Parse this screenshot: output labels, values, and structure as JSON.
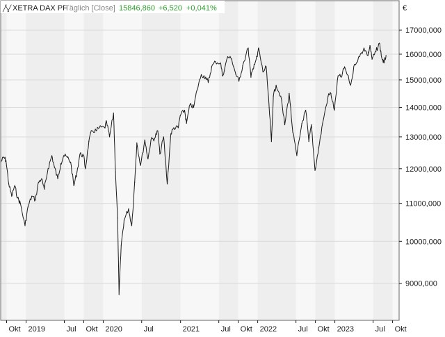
{
  "header": {
    "logo_glyph": "╱╲╱",
    "instrument": "XETRA DAX PF",
    "period": "Täglich [Close]",
    "last": "15846,860",
    "change": "+6,520",
    "change_pct": "+0,041%",
    "currency": "€"
  },
  "colors": {
    "background": "#ffffff",
    "band_light": "#f7f7f7",
    "band_dark": "#eeeeee",
    "grid": "#d9d9d9",
    "line": "#1a1a1a",
    "text": "#1a1a1a",
    "muted": "#888888",
    "positive": "#2e9e2e"
  },
  "chart_data": {
    "type": "line",
    "title": "XETRA DAX PF",
    "xlabel": "",
    "ylabel": "",
    "y_scale": "log",
    "x_range": [
      "2018-09-03",
      "2023-11-01"
    ],
    "ylim": [
      8200,
      18300
    ],
    "y_ticks": [
      {
        "value": 9000,
        "label": "9000,000"
      },
      {
        "value": 10000,
        "label": "10000,000"
      },
      {
        "value": 11000,
        "label": "11000,000"
      },
      {
        "value": 12000,
        "label": "12000,000"
      },
      {
        "value": 13000,
        "label": "13000,000"
      },
      {
        "value": 14000,
        "label": "14000,000"
      },
      {
        "value": 15000,
        "label": "15000,000"
      },
      {
        "value": 16000,
        "label": "16000,000"
      },
      {
        "value": 17000,
        "label": "17000,000"
      }
    ],
    "x_ticks": [
      {
        "date": "2018-10-01",
        "label": "Okt"
      },
      {
        "date": "2019-01-01",
        "label": "2019"
      },
      {
        "date": "2019-07-01",
        "label": "Jul"
      },
      {
        "date": "2019-10-01",
        "label": "Okt"
      },
      {
        "date": "2020-01-01",
        "label": "2020"
      },
      {
        "date": "2020-07-01",
        "label": "Jul"
      },
      {
        "date": "2021-01-01",
        "label": "2021"
      },
      {
        "date": "2021-07-01",
        "label": "Jul"
      },
      {
        "date": "2021-10-01",
        "label": "Okt"
      },
      {
        "date": "2022-01-01",
        "label": "2022"
      },
      {
        "date": "2022-07-01",
        "label": "Jul"
      },
      {
        "date": "2022-10-01",
        "label": "Okt"
      },
      {
        "date": "2023-01-01",
        "label": "2023"
      },
      {
        "date": "2023-07-01",
        "label": "Jul"
      },
      {
        "date": "2023-10-01",
        "label": "Okt"
      }
    ],
    "grid": true,
    "series": [
      {
        "color": "#1a1a1a",
        "points": [
          [
            "2018-09-03",
            12200
          ],
          [
            "2018-09-17",
            12350
          ],
          [
            "2018-09-28",
            12250
          ],
          [
            "2018-10-11",
            11550
          ],
          [
            "2018-10-25",
            11200
          ],
          [
            "2018-11-08",
            11500
          ],
          [
            "2018-11-22",
            11150
          ],
          [
            "2018-12-05",
            11000
          ],
          [
            "2018-12-27",
            10400
          ],
          [
            "2019-01-10",
            10900
          ],
          [
            "2019-01-28",
            11200
          ],
          [
            "2019-02-14",
            11100
          ],
          [
            "2019-03-01",
            11600
          ],
          [
            "2019-03-15",
            11700
          ],
          [
            "2019-03-28",
            11400
          ],
          [
            "2019-04-15",
            12000
          ],
          [
            "2019-05-03",
            12400
          ],
          [
            "2019-05-15",
            12050
          ],
          [
            "2019-05-31",
            11700
          ],
          [
            "2019-06-14",
            12150
          ],
          [
            "2019-06-28",
            12400
          ],
          [
            "2019-07-15",
            12350
          ],
          [
            "2019-07-31",
            12200
          ],
          [
            "2019-08-15",
            11500
          ],
          [
            "2019-08-30",
            11900
          ],
          [
            "2019-09-13",
            12450
          ],
          [
            "2019-09-30",
            12400
          ],
          [
            "2019-10-09",
            12000
          ],
          [
            "2019-10-25",
            12850
          ],
          [
            "2019-11-08",
            13200
          ],
          [
            "2019-11-29",
            13200
          ],
          [
            "2019-12-13",
            13300
          ],
          [
            "2020-01-08",
            13300
          ],
          [
            "2020-01-17",
            13500
          ],
          [
            "2020-01-31",
            13000
          ],
          [
            "2020-02-19",
            13800
          ],
          [
            "2020-02-28",
            11900
          ],
          [
            "2020-03-09",
            10600
          ],
          [
            "2020-03-16",
            8750
          ],
          [
            "2020-03-26",
            9900
          ],
          [
            "2020-04-09",
            10550
          ],
          [
            "2020-04-30",
            10850
          ],
          [
            "2020-05-15",
            10400
          ],
          [
            "2020-05-29",
            11600
          ],
          [
            "2020-06-08",
            12800
          ],
          [
            "2020-06-26",
            12100
          ],
          [
            "2020-07-16",
            12900
          ],
          [
            "2020-07-31",
            12300
          ],
          [
            "2020-08-14",
            12900
          ],
          [
            "2020-08-31",
            12950
          ],
          [
            "2020-09-15",
            13200
          ],
          [
            "2020-09-25",
            12450
          ],
          [
            "2020-10-13",
            13000
          ],
          [
            "2020-10-30",
            11550
          ],
          [
            "2020-11-16",
            13100
          ],
          [
            "2020-11-30",
            13300
          ],
          [
            "2020-12-21",
            13300
          ],
          [
            "2020-12-30",
            13700
          ],
          [
            "2021-01-20",
            13900
          ],
          [
            "2021-01-29",
            13450
          ],
          [
            "2021-02-15",
            14100
          ],
          [
            "2021-03-04",
            14000
          ],
          [
            "2021-03-19",
            14600
          ],
          [
            "2021-04-09",
            15200
          ],
          [
            "2021-04-30",
            15100
          ],
          [
            "2021-05-12",
            14900
          ],
          [
            "2021-05-28",
            15500
          ],
          [
            "2021-06-15",
            15700
          ],
          [
            "2021-07-09",
            15650
          ],
          [
            "2021-07-19",
            15150
          ],
          [
            "2021-08-12",
            15900
          ],
          [
            "2021-08-31",
            15800
          ],
          [
            "2021-09-20",
            15200
          ],
          [
            "2021-10-04",
            14950
          ],
          [
            "2021-10-22",
            15550
          ],
          [
            "2021-11-17",
            16250
          ],
          [
            "2021-11-30",
            15100
          ],
          [
            "2021-12-15",
            15600
          ],
          [
            "2021-12-30",
            15900
          ],
          [
            "2022-01-05",
            16250
          ],
          [
            "2022-01-26",
            15300
          ],
          [
            "2022-02-10",
            15500
          ],
          [
            "2022-02-24",
            14000
          ],
          [
            "2022-03-07",
            12850
          ],
          [
            "2022-03-16",
            14400
          ],
          [
            "2022-03-29",
            14800
          ],
          [
            "2022-04-20",
            14400
          ],
          [
            "2022-05-09",
            13400
          ],
          [
            "2022-05-30",
            14500
          ],
          [
            "2022-06-16",
            13150
          ],
          [
            "2022-07-05",
            12400
          ],
          [
            "2022-07-29",
            13450
          ],
          [
            "2022-08-16",
            13900
          ],
          [
            "2022-08-31",
            12850
          ],
          [
            "2022-09-12",
            13400
          ],
          [
            "2022-09-29",
            11950
          ],
          [
            "2022-10-17",
            12650
          ],
          [
            "2022-11-04",
            13450
          ],
          [
            "2022-11-30",
            14400
          ],
          [
            "2022-12-13",
            14500
          ],
          [
            "2022-12-30",
            13900
          ],
          [
            "2023-01-16",
            15150
          ],
          [
            "2023-01-31",
            15100
          ],
          [
            "2023-02-16",
            15500
          ],
          [
            "2023-03-17",
            14800
          ],
          [
            "2023-04-04",
            15600
          ],
          [
            "2023-04-28",
            15900
          ],
          [
            "2023-05-19",
            16250
          ],
          [
            "2023-06-07",
            15950
          ],
          [
            "2023-06-16",
            16350
          ],
          [
            "2023-06-26",
            15800
          ],
          [
            "2023-07-14",
            16100
          ],
          [
            "2023-07-31",
            16450
          ],
          [
            "2023-08-11",
            15850
          ],
          [
            "2023-08-22",
            15650
          ],
          [
            "2023-08-31",
            15946
          ]
        ]
      }
    ]
  }
}
